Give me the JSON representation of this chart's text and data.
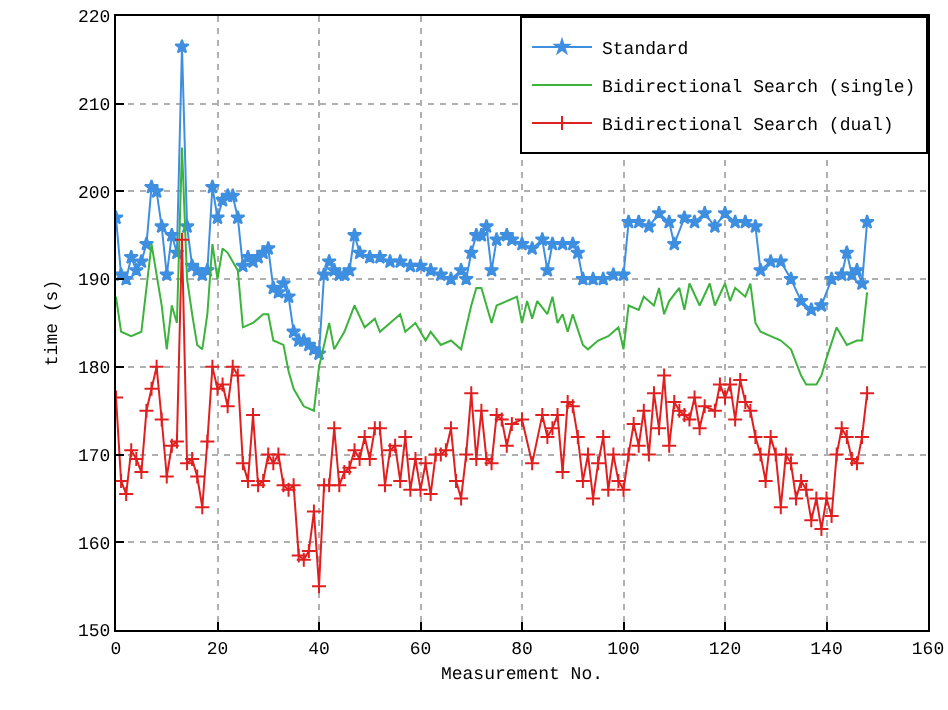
{
  "chart_data": {
    "type": "line",
    "xlabel": "Measurement No.",
    "ylabel": "time (s)",
    "xlim": [
      0,
      160
    ],
    "xticks": [
      0,
      20,
      40,
      60,
      80,
      100,
      120,
      140,
      160
    ],
    "ylim": [
      150,
      220
    ],
    "yticks": [
      150,
      160,
      170,
      180,
      190,
      200,
      210,
      220
    ],
    "grid": true,
    "legend": "top right",
    "line_style": "solid",
    "series": [
      {
        "name": "Standard",
        "color": "#3f8fe0",
        "marker": "star",
        "x": [
          0,
          1,
          2,
          3,
          4,
          5,
          6,
          7,
          8,
          9,
          10,
          11,
          12,
          13,
          14,
          15,
          16,
          17,
          18,
          19,
          20,
          21,
          22,
          23,
          24,
          25,
          26,
          27,
          28,
          29,
          30,
          31,
          32,
          33,
          34,
          35,
          36,
          37,
          38,
          39,
          40,
          41,
          42,
          43,
          44,
          45,
          46,
          47,
          48,
          50,
          52,
          54,
          56,
          58,
          60,
          62,
          64,
          66,
          68,
          69,
          70,
          71,
          72,
          73,
          74,
          75,
          77,
          78,
          80,
          82,
          84,
          85,
          86,
          88,
          90,
          91,
          92,
          94,
          96,
          98,
          100,
          101,
          103,
          105,
          107,
          109,
          110,
          112,
          114,
          116,
          118,
          120,
          122,
          124,
          126,
          127,
          129,
          131,
          133,
          135,
          137,
          139,
          141,
          143,
          144,
          145,
          146,
          147,
          148
        ],
        "values": [
          197,
          190.5,
          190,
          192.5,
          191,
          192,
          194,
          200.5,
          200,
          196,
          190.5,
          195,
          193,
          216.5,
          196,
          191.5,
          191,
          190.5,
          191,
          200.5,
          197,
          199,
          199.5,
          199.5,
          197,
          191.5,
          192.5,
          192,
          192.5,
          193,
          193.5,
          189,
          188.5,
          189.5,
          188,
          184,
          183,
          183,
          182.5,
          182,
          181.5,
          190.5,
          192,
          191,
          190.5,
          190.5,
          191,
          195,
          193,
          192.5,
          192.5,
          192,
          192,
          191.5,
          191.5,
          191,
          190.5,
          190,
          191,
          190,
          193,
          195,
          195,
          196,
          191,
          194.5,
          195,
          194.5,
          194,
          193.5,
          194.5,
          191,
          194,
          194,
          194,
          193,
          190,
          190,
          190,
          190.5,
          190.5,
          196.5,
          196.5,
          196,
          197.5,
          196.5,
          194,
          197,
          196.5,
          197.5,
          196,
          197.5,
          196.5,
          196.5,
          196,
          191,
          192,
          192,
          190,
          187.5,
          186.5,
          187,
          190,
          190.5,
          193,
          190.5,
          191,
          189.5,
          196.5
        ]
      },
      {
        "name": "Bidirectional Search (single)",
        "color": "#3cb43c",
        "marker": "none",
        "x": [
          0,
          1,
          3,
          5,
          7,
          9,
          10,
          11,
          12,
          13,
          14,
          15,
          16,
          17,
          18,
          19,
          20,
          21,
          22,
          24,
          25,
          27,
          29,
          30,
          31,
          33,
          34,
          35,
          37,
          39,
          40,
          41,
          42,
          43,
          45,
          47,
          49,
          51,
          52,
          54,
          56,
          57,
          59,
          61,
          62,
          64,
          66,
          68,
          70,
          71,
          72,
          74,
          75,
          77,
          79,
          80,
          81,
          82,
          83,
          85,
          86,
          87,
          88,
          89,
          90,
          92,
          93,
          95,
          97,
          99,
          100,
          101,
          103,
          104,
          106,
          107,
          108,
          109,
          111,
          112,
          113,
          115,
          117,
          118,
          120,
          121,
          122,
          124,
          125,
          126,
          127,
          129,
          131,
          133,
          135,
          136,
          138,
          139,
          140,
          142,
          144,
          146,
          147,
          148
        ],
        "values": [
          188,
          184,
          183.5,
          184,
          194,
          187,
          182,
          187,
          185,
          205,
          190,
          186,
          182.5,
          182,
          186,
          194,
          190,
          193.5,
          193,
          191,
          184.5,
          185,
          186,
          186,
          183,
          182.5,
          179.5,
          177.5,
          175.5,
          175,
          180,
          182.5,
          185,
          182,
          184,
          187,
          184.5,
          185.5,
          184,
          185,
          186,
          184,
          185,
          183,
          184,
          182.5,
          183,
          182,
          187,
          189,
          189,
          185,
          187,
          187.5,
          188,
          185,
          187.5,
          185.5,
          187.5,
          186,
          188,
          185,
          186,
          184,
          186,
          182.5,
          182,
          183,
          183.5,
          184.5,
          182,
          187,
          186.5,
          188,
          187,
          189,
          186,
          187.5,
          189,
          186.5,
          189.5,
          187,
          189.5,
          187,
          189.5,
          187.5,
          189,
          188,
          189.5,
          185,
          184,
          183.5,
          183,
          182,
          179,
          178,
          178,
          179,
          181,
          184.5,
          182.5,
          183,
          183,
          188.5
        ]
      },
      {
        "name": "Bidirectional Search (dual)",
        "color": "#e02020",
        "marker": "cross",
        "x": [
          0,
          1,
          2,
          3,
          4,
          5,
          6,
          7,
          8,
          9,
          10,
          11,
          12,
          13,
          14,
          15,
          16,
          17,
          18,
          19,
          20,
          21,
          22,
          23,
          24,
          25,
          26,
          27,
          28,
          29,
          30,
          31,
          32,
          33,
          34,
          35,
          36,
          37,
          38,
          39,
          40,
          41,
          42,
          43,
          44,
          45,
          46,
          47,
          48,
          49,
          50,
          51,
          52,
          53,
          54,
          55,
          56,
          57,
          58,
          59,
          60,
          61,
          62,
          63,
          64,
          65,
          66,
          67,
          68,
          69,
          70,
          71,
          72,
          73,
          74,
          75,
          76,
          77,
          78,
          80,
          82,
          84,
          85,
          86,
          87,
          88,
          89,
          90,
          91,
          92,
          93,
          94,
          95,
          96,
          97,
          98,
          99,
          100,
          101,
          102,
          103,
          104,
          105,
          106,
          107,
          108,
          109,
          110,
          111,
          112,
          113,
          114,
          115,
          116,
          118,
          119,
          120,
          121,
          122,
          123,
          124,
          125,
          126,
          127,
          128,
          129,
          130,
          131,
          132,
          133,
          134,
          135,
          136,
          137,
          138,
          139,
          140,
          141,
          142,
          143,
          144,
          145,
          146,
          147,
          148
        ],
        "values": [
          176.5,
          167,
          165.5,
          170.5,
          169.5,
          168,
          175,
          177.5,
          180,
          174,
          167.5,
          171,
          171.5,
          194.5,
          169,
          169.5,
          167.5,
          164,
          171.5,
          180,
          177.5,
          178,
          175.5,
          180,
          179,
          169,
          167,
          174.5,
          166.5,
          167,
          170,
          169,
          170,
          166.5,
          166,
          166.5,
          158.5,
          158,
          159,
          163.5,
          155,
          166.5,
          166.5,
          173,
          166.5,
          168,
          168.5,
          170.5,
          169.5,
          172,
          169.5,
          173,
          173,
          166.5,
          170.5,
          171,
          167,
          172,
          166,
          169.5,
          166,
          169,
          165.5,
          170,
          170,
          170.5,
          173,
          167,
          165,
          170,
          177,
          169.5,
          175,
          169.5,
          169,
          174.5,
          174,
          171,
          173.5,
          174,
          169,
          174.5,
          172,
          173,
          174.5,
          168,
          176,
          175.5,
          172,
          167,
          170,
          165,
          169,
          172,
          166,
          170,
          167,
          166,
          170,
          173.5,
          171,
          175,
          170,
          177,
          173,
          179,
          171,
          176,
          175,
          174.5,
          174,
          176.5,
          173,
          175.5,
          175,
          178,
          176.5,
          178,
          174,
          178.5,
          176,
          175,
          172,
          170,
          167,
          172,
          170,
          164,
          170,
          169,
          165,
          167,
          166,
          162.5,
          165,
          161.5,
          165,
          163,
          170,
          173,
          172,
          169.5,
          169,
          172,
          177
        ]
      }
    ]
  }
}
